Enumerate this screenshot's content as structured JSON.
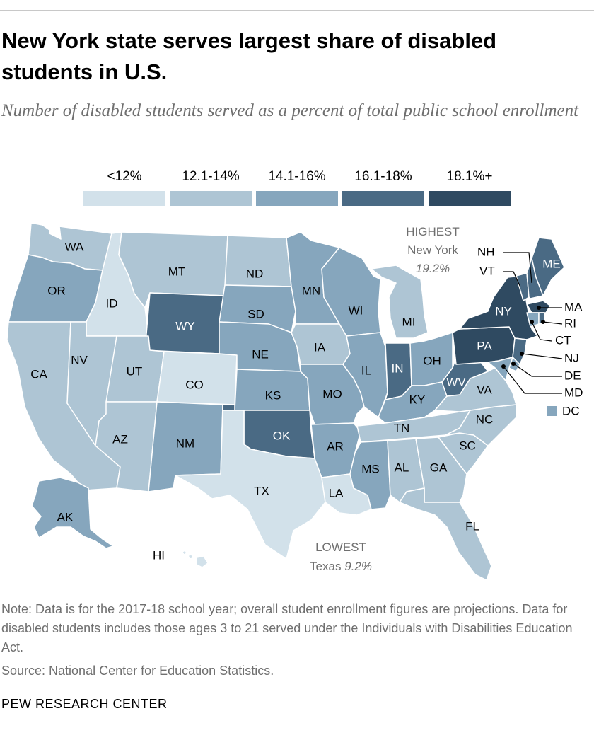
{
  "title": "New York state serves largest share of disabled students in U.S.",
  "subtitle": "Number of disabled students served as a percent of total public school enrollment",
  "legend": [
    {
      "label": "<12%",
      "color": "#d2e1ea"
    },
    {
      "label": "12.1-14%",
      "color": "#aec5d4"
    },
    {
      "label": "14.1-16%",
      "color": "#86a6bd"
    },
    {
      "label": "16.1-18%",
      "color": "#4a6a84"
    },
    {
      "label": "18.1%+",
      "color": "#2f4a61"
    }
  ],
  "highest": {
    "heading": "HIGHEST",
    "state": "New York",
    "value": "19.2%"
  },
  "lowest": {
    "heading": "LOWEST",
    "state": "Texas",
    "value": "9.2%"
  },
  "states": [
    {
      "abbr": "WA",
      "bin": 1
    },
    {
      "abbr": "OR",
      "bin": 2
    },
    {
      "abbr": "CA",
      "bin": 1
    },
    {
      "abbr": "ID",
      "bin": 0
    },
    {
      "abbr": "NV",
      "bin": 1
    },
    {
      "abbr": "MT",
      "bin": 1
    },
    {
      "abbr": "WY",
      "bin": 3
    },
    {
      "abbr": "UT",
      "bin": 1
    },
    {
      "abbr": "AZ",
      "bin": 1
    },
    {
      "abbr": "CO",
      "bin": 0
    },
    {
      "abbr": "NM",
      "bin": 2
    },
    {
      "abbr": "ND",
      "bin": 1
    },
    {
      "abbr": "SD",
      "bin": 2
    },
    {
      "abbr": "NE",
      "bin": 2
    },
    {
      "abbr": "KS",
      "bin": 2
    },
    {
      "abbr": "OK",
      "bin": 3
    },
    {
      "abbr": "TX",
      "bin": 0
    },
    {
      "abbr": "MN",
      "bin": 2
    },
    {
      "abbr": "IA",
      "bin": 1
    },
    {
      "abbr": "MO",
      "bin": 2
    },
    {
      "abbr": "AR",
      "bin": 2
    },
    {
      "abbr": "LA",
      "bin": 0
    },
    {
      "abbr": "WI",
      "bin": 2
    },
    {
      "abbr": "IL",
      "bin": 2
    },
    {
      "abbr": "MI",
      "bin": 1
    },
    {
      "abbr": "IN",
      "bin": 3
    },
    {
      "abbr": "OH",
      "bin": 2
    },
    {
      "abbr": "KY",
      "bin": 2
    },
    {
      "abbr": "TN",
      "bin": 1
    },
    {
      "abbr": "MS",
      "bin": 2
    },
    {
      "abbr": "AL",
      "bin": 1
    },
    {
      "abbr": "GA",
      "bin": 1
    },
    {
      "abbr": "FL",
      "bin": 1
    },
    {
      "abbr": "SC",
      "bin": 1
    },
    {
      "abbr": "NC",
      "bin": 1
    },
    {
      "abbr": "VA",
      "bin": 1
    },
    {
      "abbr": "WV",
      "bin": 3
    },
    {
      "abbr": "PA",
      "bin": 4
    },
    {
      "abbr": "NY",
      "bin": 4
    },
    {
      "abbr": "ME",
      "bin": 3
    },
    {
      "abbr": "VT",
      "bin": 3
    },
    {
      "abbr": "NH",
      "bin": 3
    },
    {
      "abbr": "MA",
      "bin": 4
    },
    {
      "abbr": "RI",
      "bin": 3
    },
    {
      "abbr": "CT",
      "bin": 2
    },
    {
      "abbr": "NJ",
      "bin": 3
    },
    {
      "abbr": "DE",
      "bin": 2
    },
    {
      "abbr": "MD",
      "bin": 2
    },
    {
      "abbr": "DC",
      "bin": 2
    },
    {
      "abbr": "AK",
      "bin": 2
    },
    {
      "abbr": "HI",
      "bin": 0
    }
  ],
  "note": "Note: Data is for the 2017-18 school year; overall student enrollment figures are projections. Data for disabled students includes those ages 3 to 21 served under the Individuals with Disabilities Education Act.",
  "source": "Source: National Center for Education Statistics.",
  "brand": "PEW RESEARCH CENTER"
}
